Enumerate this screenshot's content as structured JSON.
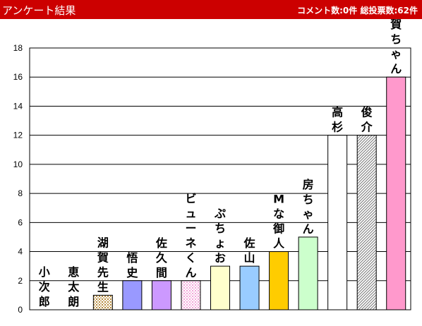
{
  "header": {
    "title": "アンケート結果",
    "comment_label": "コメント数:",
    "comment_count": "0",
    "comment_unit": "件",
    "votes_label": "総投票数:",
    "votes_count": "62",
    "votes_unit": "件",
    "background_color": "#cc0000"
  },
  "chart_data": {
    "type": "bar",
    "orientation": "vertical",
    "ylim": [
      0,
      18
    ],
    "yticks": [
      0,
      2,
      4,
      6,
      8,
      10,
      12,
      14,
      16,
      18
    ],
    "grid": true,
    "categories": [
      "小次郎",
      "恵太朗",
      "湖賀先生",
      "悟史",
      "佐久間",
      "ビューネくん",
      "ぷちょお",
      "佐山",
      "Mな御人",
      "房ちゃん",
      "高杉",
      "俊介",
      "須賀ちゃん"
    ],
    "values": [
      0,
      0,
      1,
      2,
      2,
      2,
      3,
      3,
      4,
      5,
      12,
      12,
      16
    ],
    "colors": [
      "#ffffff",
      "#ffffff",
      "#f0c060",
      "#9999ff",
      "#cc99ff",
      "#f8c8e8",
      "#ffffcc",
      "#99ccff",
      "#ffcc00",
      "#ccffcc",
      "#ffffff",
      "#d8d8d8",
      "#ff99cc"
    ],
    "patterns": [
      "solid",
      "solid",
      "dots",
      "solid",
      "solid",
      "dots",
      "solid",
      "solid",
      "solid",
      "solid",
      "solid",
      "hatch",
      "solid"
    ]
  }
}
